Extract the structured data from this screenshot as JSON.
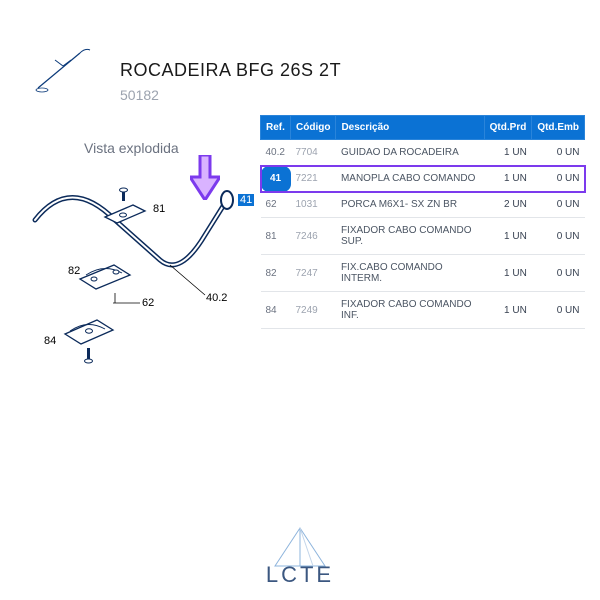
{
  "header": {
    "title": "ROCADEIRA BFG 26S 2T",
    "code": "50182",
    "view_label": "Vista explodida"
  },
  "diagram": {
    "labels": {
      "p81": "81",
      "p82": "82",
      "p84": "84",
      "p62": "62",
      "p402": "40.2",
      "p41": "41"
    }
  },
  "table": {
    "headers": {
      "ref": "Ref.",
      "codigo": "Código",
      "descricao": "Descrição",
      "qtd_prd": "Qtd.Prd",
      "qtd_emb": "Qtd.Emb"
    },
    "rows": [
      {
        "ref": "40.2",
        "codigo": "7704",
        "desc": "GUIDAO DA ROCADEIRA",
        "qtd_prd": "1 UN",
        "qtd_emb": "0 UN",
        "hl": false
      },
      {
        "ref": "41",
        "codigo": "7221",
        "desc": "MANOPLA CABO COMANDO",
        "qtd_prd": "1 UN",
        "qtd_emb": "0 UN",
        "hl": true
      },
      {
        "ref": "62",
        "codigo": "1031",
        "desc": "PORCA M6X1- SX ZN BR",
        "qtd_prd": "2 UN",
        "qtd_emb": "0 UN",
        "hl": false
      },
      {
        "ref": "81",
        "codigo": "7246",
        "desc": "FIXADOR CABO COMANDO SUP.",
        "qtd_prd": "1 UN",
        "qtd_emb": "0 UN",
        "hl": false
      },
      {
        "ref": "82",
        "codigo": "7247",
        "desc": "FIX.CABO COMANDO INTERM.",
        "qtd_prd": "1 UN",
        "qtd_emb": "0 UN",
        "hl": false
      },
      {
        "ref": "84",
        "codigo": "7249",
        "desc": "FIXADOR CABO COMANDO INF.",
        "qtd_prd": "1 UN",
        "qtd_emb": "0 UN",
        "hl": false
      }
    ]
  },
  "watermark": {
    "text": "LCTE"
  },
  "colors": {
    "primary": "#0b72d4",
    "highlight_border": "#7c3aed",
    "muted": "#9ca3af",
    "wm": "#1a3a6b"
  }
}
